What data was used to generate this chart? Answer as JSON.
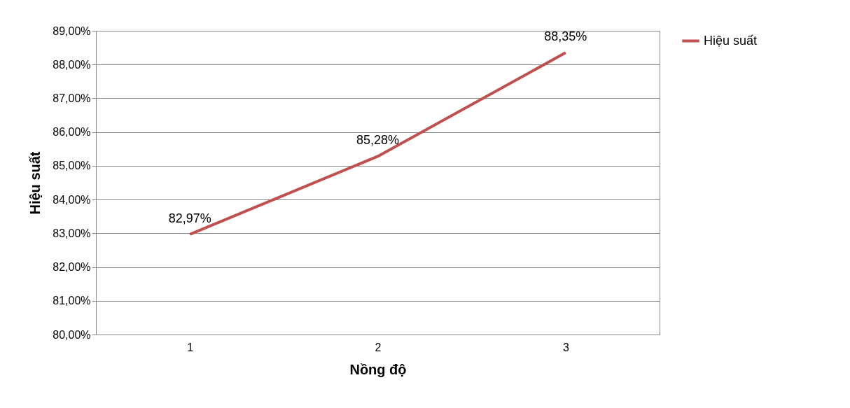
{
  "chart_data": {
    "type": "line",
    "xlabel": "Nồng độ",
    "ylabel": "Hiệu suất",
    "categories": [
      "1",
      "2",
      "3"
    ],
    "series": [
      {
        "name": "Hiệu suất",
        "color": "#c0504d",
        "values": [
          82.97,
          85.28,
          88.35
        ],
        "value_labels": [
          "82,97%",
          "85,28%",
          "88,35%"
        ]
      }
    ],
    "ylim": [
      80,
      89
    ],
    "yticks": [
      {
        "value": 80,
        "label": "80,00%"
      },
      {
        "value": 81,
        "label": "81,00%"
      },
      {
        "value": 82,
        "label": "82,00%"
      },
      {
        "value": 83,
        "label": "83,00%"
      },
      {
        "value": 84,
        "label": "84,00%"
      },
      {
        "value": 85,
        "label": "85,00%"
      },
      {
        "value": 86,
        "label": "86,00%"
      },
      {
        "value": 87,
        "label": "87,00%"
      },
      {
        "value": 88,
        "label": "88,00%"
      },
      {
        "value": 89,
        "label": "89,00%"
      }
    ],
    "grid": "y",
    "legend": "right",
    "marker": "none"
  }
}
